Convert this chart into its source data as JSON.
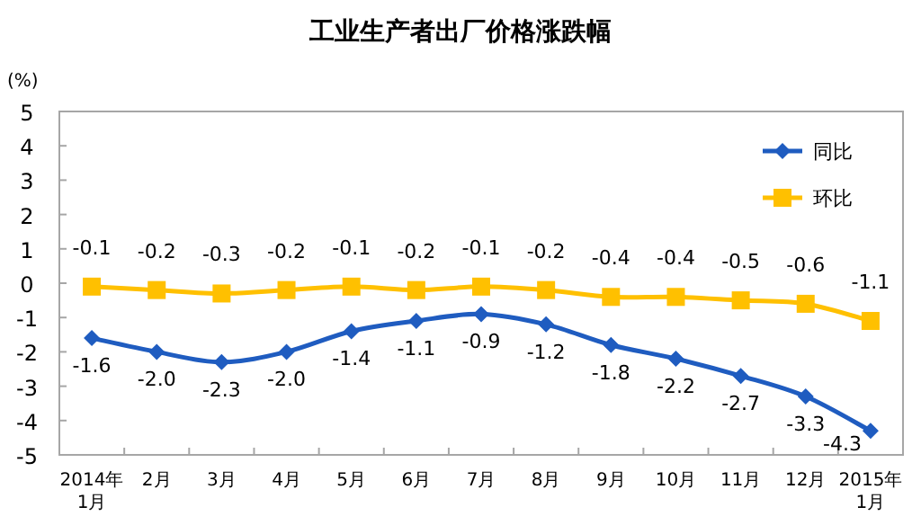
{
  "chart_data": {
    "type": "line",
    "title": "工业生产者出厂价格涨跌幅",
    "ylabel": "(%)",
    "categories": [
      "2014年\n1月",
      "2月",
      "3月",
      "4月",
      "5月",
      "6月",
      "7月",
      "8月",
      "9月",
      "10月",
      "11月",
      "12月",
      "2015年\n1月"
    ],
    "series": [
      {
        "name": "同比",
        "color": "#1f5cc0",
        "marker": "diamond",
        "values": [
          -1.6,
          -2.0,
          -2.3,
          -2.0,
          -1.4,
          -1.1,
          -0.9,
          -1.2,
          -1.8,
          -2.2,
          -2.7,
          -3.3,
          -4.3
        ],
        "value_labels": [
          "-1.6",
          "-2.0",
          "-2.3",
          "-2.0",
          "-1.4",
          "-1.1",
          "-0.9",
          "-1.2",
          "-1.8",
          "-2.2",
          "-2.7",
          "-3.3",
          "-4.3"
        ]
      },
      {
        "name": "环比",
        "color": "#ffc000",
        "marker": "square",
        "values": [
          -0.1,
          -0.2,
          -0.3,
          -0.2,
          -0.1,
          -0.2,
          -0.1,
          -0.2,
          -0.4,
          -0.4,
          -0.5,
          -0.6,
          -1.1
        ],
        "value_labels": [
          "-0.1",
          "-0.2",
          "-0.3",
          "-0.2",
          "-0.1",
          "-0.2",
          "-0.1",
          "-0.2",
          "-0.4",
          "-0.4",
          "-0.5",
          "-0.6",
          "-1.1"
        ]
      }
    ],
    "ylim": [
      -5,
      5
    ],
    "yticks": [
      -5,
      -4,
      -3,
      -2,
      -1,
      0,
      1,
      2,
      3,
      4,
      5
    ],
    "legend": "top right",
    "grid": false
  }
}
